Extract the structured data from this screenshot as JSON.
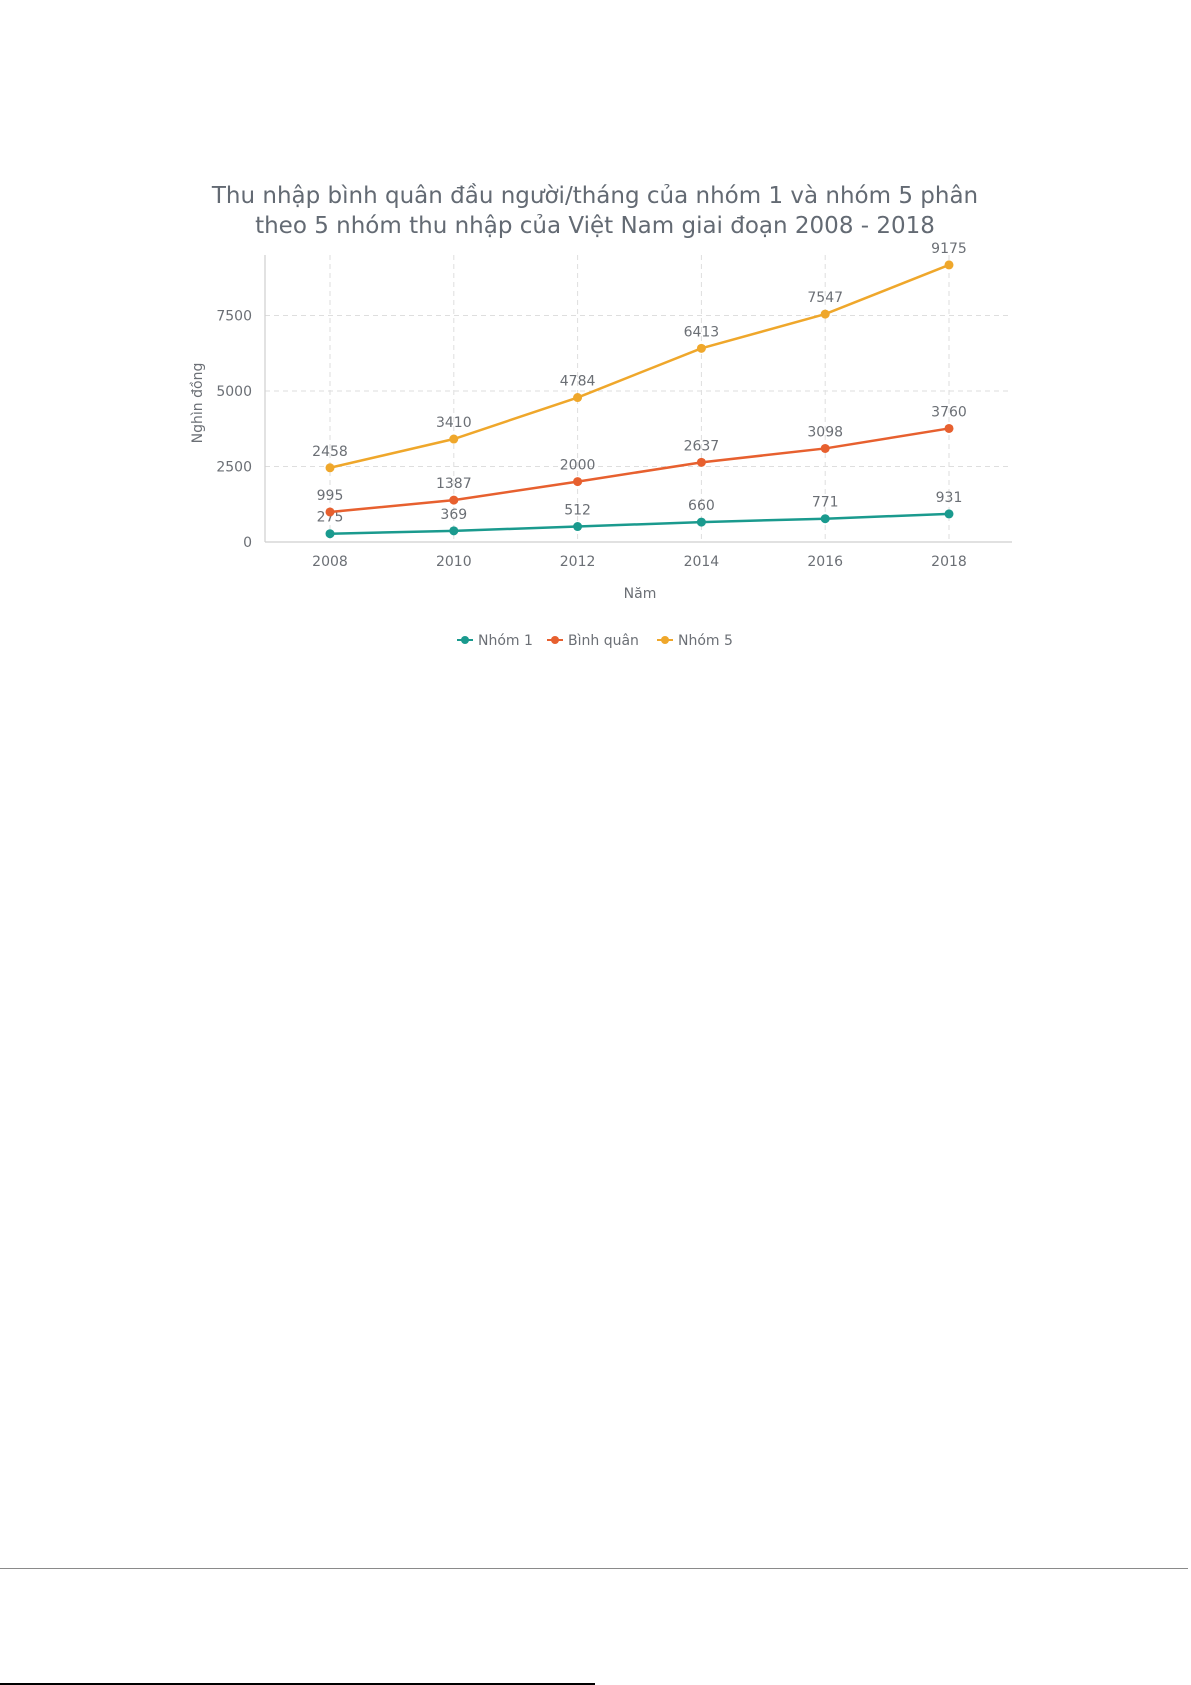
{
  "chart_data": {
    "type": "line",
    "title": [
      "Thu nhập bình quân đầu người/tháng của nhóm 1 và nhóm 5 phân",
      "theo 5 nhóm thu nhập của Việt Nam giai đoạn 2008 - 2018"
    ],
    "xlabel": "Năm",
    "ylabel": "Nghìn đồng",
    "x": [
      "2008",
      "2010",
      "2012",
      "2014",
      "2016",
      "2018"
    ],
    "yticks": [
      0,
      2500,
      5000,
      7500
    ],
    "ylim": [
      0,
      9500
    ],
    "grid": true,
    "legend_position": "bottom",
    "series": [
      {
        "name": "Nhóm 1",
        "color": "#1a9a8e",
        "values": [
          275,
          369,
          512,
          660,
          771,
          931
        ]
      },
      {
        "name": "Bình quân",
        "color": "#e7602f",
        "values": [
          995,
          1387,
          2000,
          2637,
          3098,
          3760
        ]
      },
      {
        "name": "Nhóm 5",
        "color": "#efa72b",
        "values": [
          2458,
          3410,
          4784,
          6413,
          7547,
          9175
        ]
      }
    ]
  }
}
